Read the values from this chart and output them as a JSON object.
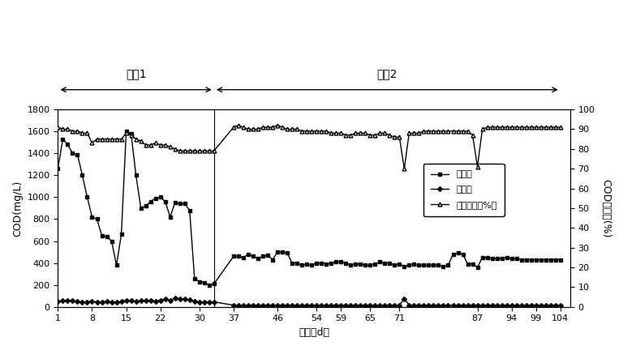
{
  "xlabel": "日期（d）",
  "ylabel_left": "COD(mg/L)",
  "ylabel_right": "COD去除率(%)",
  "xticks": [
    1,
    8,
    15,
    22,
    30,
    37,
    46,
    54,
    59,
    65,
    71,
    87,
    94,
    99,
    104
  ],
  "ylim_left": [
    0,
    1800
  ],
  "ylim_right": [
    0,
    100
  ],
  "yticks_left": [
    0,
    200,
    400,
    600,
    800,
    1000,
    1200,
    1400,
    1600,
    1800
  ],
  "yticks_right": [
    0,
    10,
    20,
    30,
    40,
    50,
    60,
    70,
    80,
    90,
    100
  ],
  "phase1_label": "阶段1",
  "phase2_label": "阶段2",
  "phase_boundary": 33,
  "xmin": 1,
  "xmax": 106,
  "legend_labels": [
    "总进水",
    "总出水",
    "总去除率（%）"
  ],
  "inflow_x": [
    1,
    2,
    3,
    4,
    5,
    6,
    7,
    8,
    9,
    10,
    11,
    12,
    13,
    14,
    15,
    16,
    17,
    18,
    19,
    20,
    21,
    22,
    23,
    24,
    25,
    26,
    27,
    28,
    29,
    30,
    31,
    32,
    33,
    37,
    38,
    39,
    40,
    41,
    42,
    43,
    44,
    45,
    46,
    47,
    48,
    49,
    50,
    51,
    52,
    53,
    54,
    55,
    56,
    57,
    58,
    59,
    60,
    61,
    62,
    63,
    64,
    65,
    66,
    67,
    68,
    69,
    70,
    71,
    72,
    73,
    74,
    75,
    76,
    77,
    78,
    79,
    80,
    81,
    82,
    83,
    84,
    85,
    86,
    87,
    88,
    89,
    90,
    91,
    92,
    93,
    94,
    95,
    96,
    97,
    98,
    99,
    100,
    101,
    102,
    103,
    104
  ],
  "inflow_y": [
    1260,
    1530,
    1480,
    1400,
    1390,
    1200,
    1000,
    820,
    800,
    650,
    640,
    600,
    380,
    660,
    1600,
    1580,
    1200,
    900,
    920,
    960,
    990,
    1000,
    960,
    820,
    950,
    940,
    940,
    880,
    260,
    230,
    220,
    200,
    210,
    460,
    460,
    450,
    480,
    460,
    440,
    460,
    470,
    430,
    500,
    500,
    490,
    400,
    400,
    380,
    390,
    380,
    400,
    400,
    390,
    400,
    410,
    410,
    400,
    380,
    390,
    390,
    380,
    380,
    390,
    410,
    400,
    400,
    380,
    390,
    370,
    380,
    390,
    380,
    380,
    380,
    380,
    380,
    370,
    380,
    480,
    490,
    480,
    390,
    390,
    360,
    450,
    450,
    440,
    440,
    440,
    450,
    440,
    440,
    430,
    430,
    430,
    430,
    430,
    430,
    430,
    430,
    430
  ],
  "outflow_x": [
    1,
    2,
    3,
    4,
    5,
    6,
    7,
    8,
    9,
    10,
    11,
    12,
    13,
    14,
    15,
    16,
    17,
    18,
    19,
    20,
    21,
    22,
    23,
    24,
    25,
    26,
    27,
    28,
    29,
    30,
    31,
    32,
    33,
    37,
    38,
    39,
    40,
    41,
    42,
    43,
    44,
    45,
    46,
    47,
    48,
    49,
    50,
    51,
    52,
    53,
    54,
    55,
    56,
    57,
    58,
    59,
    60,
    61,
    62,
    63,
    64,
    65,
    66,
    67,
    68,
    69,
    70,
    71,
    72,
    73,
    74,
    75,
    76,
    77,
    78,
    79,
    80,
    81,
    82,
    83,
    84,
    85,
    86,
    87,
    88,
    89,
    90,
    91,
    92,
    93,
    94,
    95,
    96,
    97,
    98,
    99,
    100,
    101,
    102,
    103,
    104
  ],
  "outflow_y": [
    50,
    55,
    60,
    55,
    50,
    45,
    45,
    50,
    45,
    45,
    50,
    45,
    40,
    50,
    60,
    55,
    50,
    55,
    60,
    55,
    50,
    60,
    70,
    60,
    80,
    75,
    70,
    65,
    50,
    45,
    45,
    45,
    45,
    15,
    15,
    15,
    15,
    15,
    15,
    15,
    15,
    15,
    15,
    15,
    15,
    15,
    15,
    15,
    15,
    15,
    15,
    15,
    15,
    15,
    15,
    15,
    15,
    15,
    15,
    15,
    15,
    15,
    15,
    15,
    15,
    15,
    15,
    15,
    75,
    15,
    15,
    15,
    15,
    15,
    15,
    15,
    15,
    15,
    15,
    15,
    15,
    15,
    15,
    15,
    15,
    15,
    15,
    15,
    15,
    15,
    15,
    15,
    15,
    15,
    15,
    15,
    15,
    15,
    15,
    15,
    15
  ],
  "removal_x": [
    1,
    2,
    3,
    4,
    5,
    6,
    7,
    8,
    9,
    10,
    11,
    12,
    13,
    14,
    15,
    16,
    17,
    18,
    19,
    20,
    21,
    22,
    23,
    24,
    25,
    26,
    27,
    28,
    29,
    30,
    31,
    32,
    33,
    37,
    38,
    39,
    40,
    41,
    42,
    43,
    44,
    45,
    46,
    47,
    48,
    49,
    50,
    51,
    52,
    53,
    54,
    55,
    56,
    57,
    58,
    59,
    60,
    61,
    62,
    63,
    64,
    65,
    66,
    67,
    68,
    69,
    70,
    71,
    72,
    73,
    74,
    75,
    76,
    77,
    78,
    79,
    80,
    81,
    82,
    83,
    84,
    85,
    86,
    87,
    88,
    89,
    90,
    91,
    92,
    93,
    94,
    95,
    96,
    97,
    98,
    99,
    100,
    101,
    102,
    103,
    104
  ],
  "removal_y": [
    91,
    90,
    90,
    89,
    89,
    88,
    88,
    83,
    85,
    85,
    85,
    85,
    85,
    85,
    88,
    87,
    85,
    84,
    82,
    82,
    83,
    82,
    82,
    81,
    80,
    79,
    79,
    79,
    79,
    79,
    79,
    79,
    79,
    91,
    92,
    91,
    90,
    90,
    90,
    91,
    91,
    91,
    92,
    91,
    90,
    90,
    90,
    89,
    89,
    89,
    89,
    89,
    89,
    88,
    88,
    88,
    87,
    87,
    88,
    88,
    88,
    87,
    87,
    88,
    88,
    87,
    86,
    86,
    70,
    88,
    88,
    88,
    89,
    89,
    89,
    89,
    89,
    89,
    89,
    89,
    89,
    89,
    87,
    71,
    90,
    91,
    91,
    91,
    91,
    91,
    91,
    91,
    91,
    91,
    91,
    91,
    91,
    91,
    91,
    91,
    91
  ]
}
